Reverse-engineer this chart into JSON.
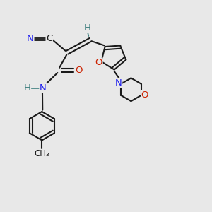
{
  "bg_color": "#e8e8e8",
  "bond_color": "#1a1a1a",
  "N_color": "#2020ee",
  "O_color": "#cc2200",
  "C_color": "#1a1a1a",
  "H_color": "#408080",
  "fs": 9.5,
  "fs_small": 8.5,
  "lw": 1.5,
  "doff": 0.08,
  "xlim": [
    0,
    10
  ],
  "ylim": [
    0,
    10
  ]
}
